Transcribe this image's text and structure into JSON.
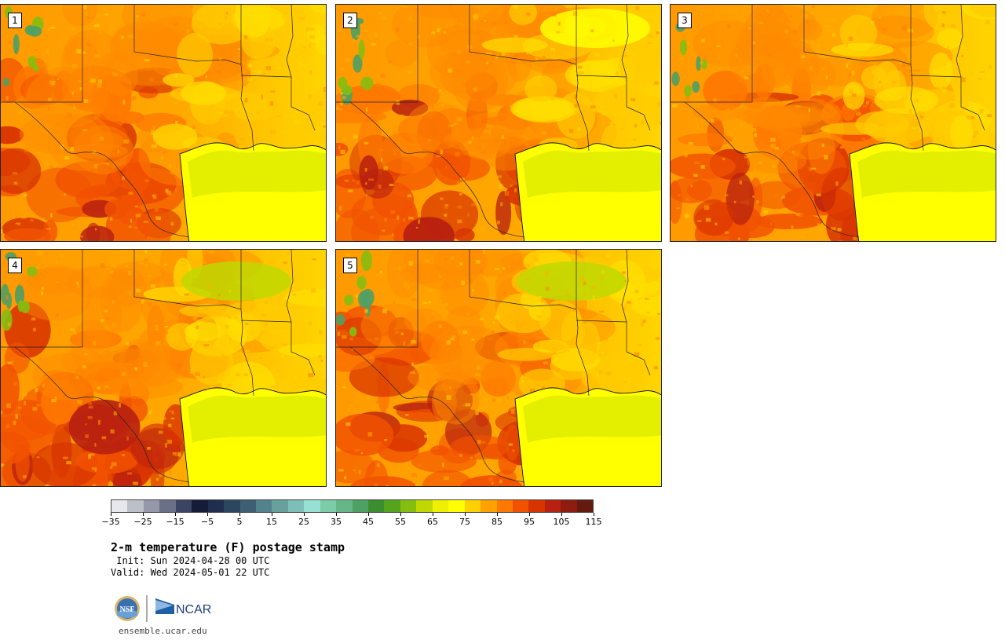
{
  "panels": [
    {
      "label": "1",
      "heat_level": 0.72
    },
    {
      "label": "2",
      "heat_level": 0.68
    },
    {
      "label": "3",
      "heat_level": 0.74
    },
    {
      "label": "4",
      "heat_level": 0.8
    },
    {
      "label": "5",
      "heat_level": 0.78
    }
  ],
  "colorbar": {
    "colors": [
      "#e6e8ec",
      "#bcc0c8",
      "#9498a8",
      "#6a7088",
      "#3c4464",
      "#141c38",
      "#1e2e4c",
      "#2c4660",
      "#3e5e74",
      "#52828c",
      "#68a09e",
      "#7ebeb8",
      "#98e0d4",
      "#7ccca8",
      "#66b688",
      "#4ea064",
      "#3a8e30",
      "#56a41e",
      "#86be10",
      "#c0d800",
      "#eef000",
      "#ffff00",
      "#ffd000",
      "#ffa200",
      "#ff7800",
      "#f25200",
      "#d83400",
      "#b82010",
      "#8e1c10",
      "#641a0e"
    ],
    "tick_labels": [
      "−35",
      "−25",
      "−15",
      "−5",
      "5",
      "15",
      "25",
      "35",
      "45",
      "55",
      "65",
      "75",
      "85",
      "95",
      "105",
      "115"
    ]
  },
  "title": "2-m temperature (F) postage stamp",
  "init": " Init: Sun 2024-04-28 00 UTC",
  "valid": "Valid: Wed 2024-05-01 22 UTC",
  "logos": {
    "nsf": "NSF",
    "ncar": "NCAR"
  },
  "site": "ensemble.ucar.edu"
}
